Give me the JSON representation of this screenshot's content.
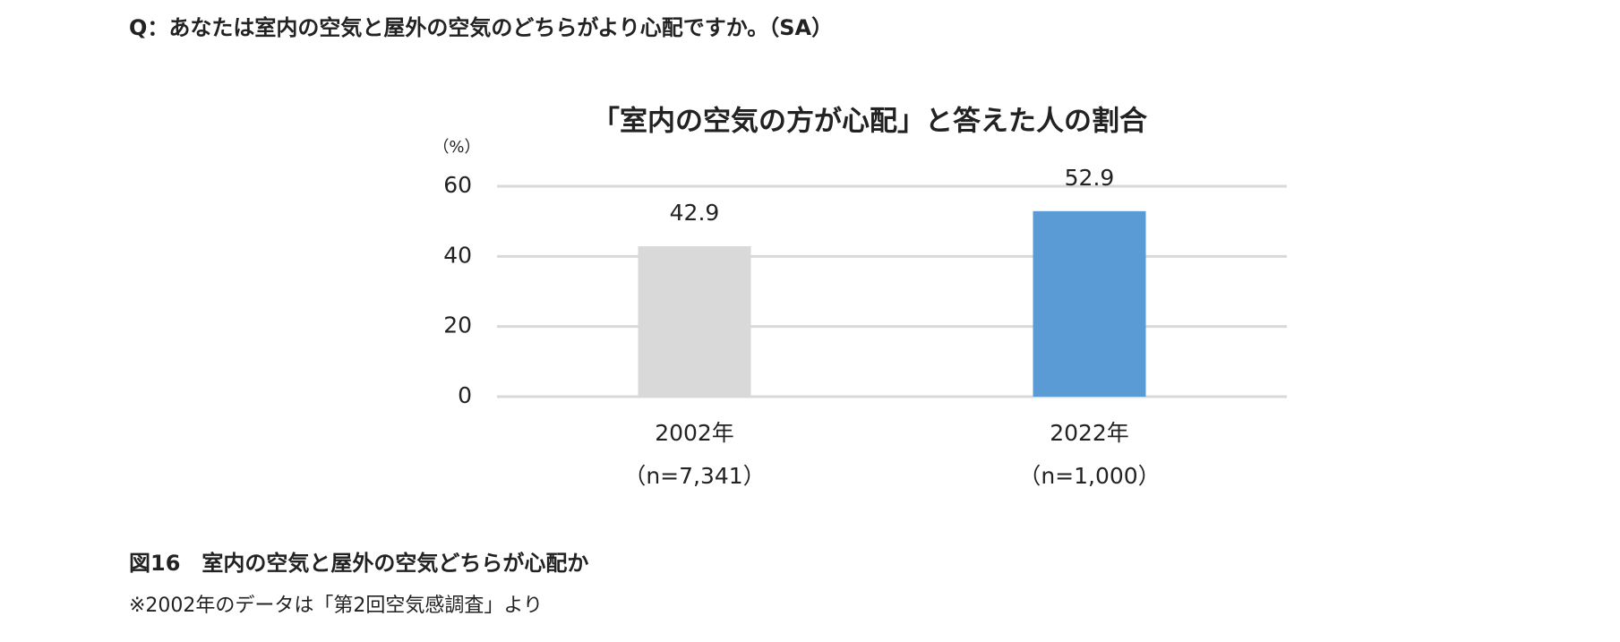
{
  "question": "Q：あなたは室内の空気と屋外の空気のどちらがより心配ですか。（SA）",
  "chart_data": {
    "type": "bar",
    "title": "「室内の空気の方が心配」と答えた人の割合",
    "y_label": "（%）",
    "categories": [
      "2002年",
      "2022年"
    ],
    "sample_sizes": [
      "（n=7,341）",
      "（n=1,000）"
    ],
    "values": [
      42.9,
      52.9
    ],
    "colors": [
      "#d9d9d9",
      "#5b9bd5"
    ],
    "ylim": [
      0,
      60
    ],
    "yticks": [
      0,
      20,
      40,
      60
    ],
    "grid": true
  },
  "figure_caption": "図16　室内の空気と屋外の空気どちらが心配か",
  "note": "※2002年のデータは「第2回空気感調査」より"
}
